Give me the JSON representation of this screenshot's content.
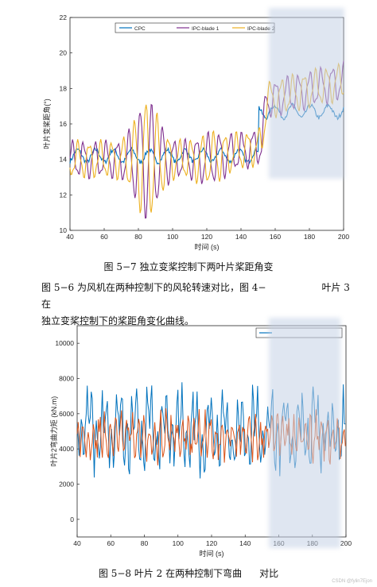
{
  "figure1": {
    "caption": "图 5−7 独立变桨控制下两叶片桨距角变",
    "chart_data": {
      "type": "line",
      "xlabel": "时间 (s)",
      "ylabel": "叶片变桨距角(°)",
      "xlim": [
        40,
        200
      ],
      "ylim": [
        10,
        22
      ],
      "xticks": [
        40,
        60,
        80,
        100,
        120,
        140,
        160,
        180,
        200
      ],
      "yticks": [
        10,
        12,
        14,
        16,
        18,
        20,
        22
      ],
      "legend_position": "top-center",
      "series": [
        {
          "name": "CPC",
          "color": "#0072BD"
        },
        {
          "name": "IPC-blade 1",
          "color": "#7E2F8E"
        },
        {
          "name": "IPC-blade 2",
          "color": "#EDB120"
        }
      ]
    }
  },
  "paragraph": {
    "line1": "图 5−6 为风机在两种控制下的风轮转速对比，图 4−",
    "line1b": "叶片 3 在",
    "line2": "独立变桨控制下的桨距角变化曲线。"
  },
  "figure2": {
    "caption": "图 5−8 叶片 2 在两种控制下弯曲",
    "caption_tail": "对比",
    "chart_data": {
      "type": "line",
      "xlabel": "时间 (s)",
      "ylabel": "叶片2弯曲力矩 (kN.m)",
      "xlim": [
        40,
        200
      ],
      "ylim": [
        -1000,
        11000
      ],
      "xticks": [
        40,
        60,
        80,
        100,
        120,
        140,
        160,
        180,
        200
      ],
      "yticks": [
        0,
        2000,
        4000,
        6000,
        8000,
        10000
      ],
      "legend_position": "top-right",
      "series": [
        {
          "color": "#0072BD"
        },
        {
          "color": "#D95319"
        }
      ]
    }
  },
  "watermark": "CSDN @fylin7Ejon"
}
